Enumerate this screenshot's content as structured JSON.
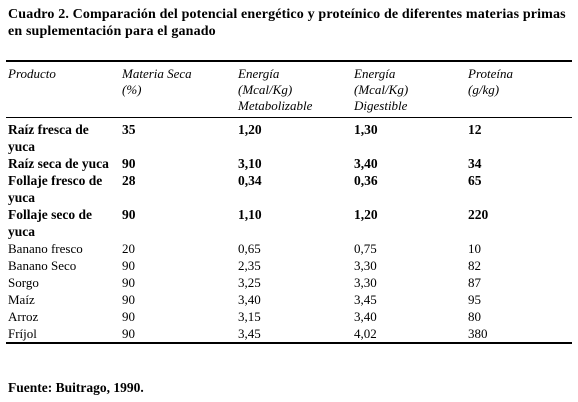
{
  "caption": "Cuadro 2. Comparación del potencial energético y proteínico de diferentes materias primas en suplementación para el ganado",
  "headers": {
    "producto": "Producto",
    "materia_seca": [
      "Materia Seca",
      "(%)"
    ],
    "energia_met": [
      "Energía",
      "(Mcal/Kg)",
      "Metabolizable"
    ],
    "energia_dig": [
      "Energía",
      "(Mcal/Kg)",
      "Digestible"
    ],
    "proteina": [
      "Proteína",
      "(g/kg)"
    ]
  },
  "rows": [
    {
      "producto": "Raíz fresca de yuca",
      "materia_seca": "35",
      "energia_met": "1,20",
      "energia_dig": "1,30",
      "proteina": "12"
    },
    {
      "producto": "Raíz seca de yuca",
      "materia_seca": "90",
      "energia_met": "3,10",
      "energia_dig": "3,40",
      "proteina": "34"
    },
    {
      "producto": "Follaje fresco de yuca",
      "materia_seca": "28",
      "energia_met": "0,34",
      "energia_dig": "0,36",
      "proteina": "65"
    },
    {
      "producto": "Follaje seco de yuca",
      "materia_seca": "90",
      "energia_met": "1,10",
      "energia_dig": "1,20",
      "proteina": "220"
    },
    {
      "producto": "Banano fresco",
      "materia_seca": "20",
      "energia_met": "0,65",
      "energia_dig": "0,75",
      "proteina": "10"
    },
    {
      "producto": "Banano Seco",
      "materia_seca": "90",
      "energia_met": "2,35",
      "energia_dig": "3,30",
      "proteina": "82"
    },
    {
      "producto": "Sorgo",
      "materia_seca": "90",
      "energia_met": "3,25",
      "energia_dig": "3,30",
      "proteina": "87"
    },
    {
      "producto": "Maíz",
      "materia_seca": "90",
      "energia_met": "3,40",
      "energia_dig": "3,45",
      "proteina": "95"
    },
    {
      "producto": "Arroz",
      "materia_seca": "90",
      "energia_met": "3,15",
      "energia_dig": "3,40",
      "proteina": "80"
    },
    {
      "producto": "Fríjol",
      "materia_seca": "90",
      "energia_met": "3,45",
      "energia_dig": "4,02",
      "proteina": "380"
    }
  ],
  "source": "Fuente: Buitrago, 1990."
}
